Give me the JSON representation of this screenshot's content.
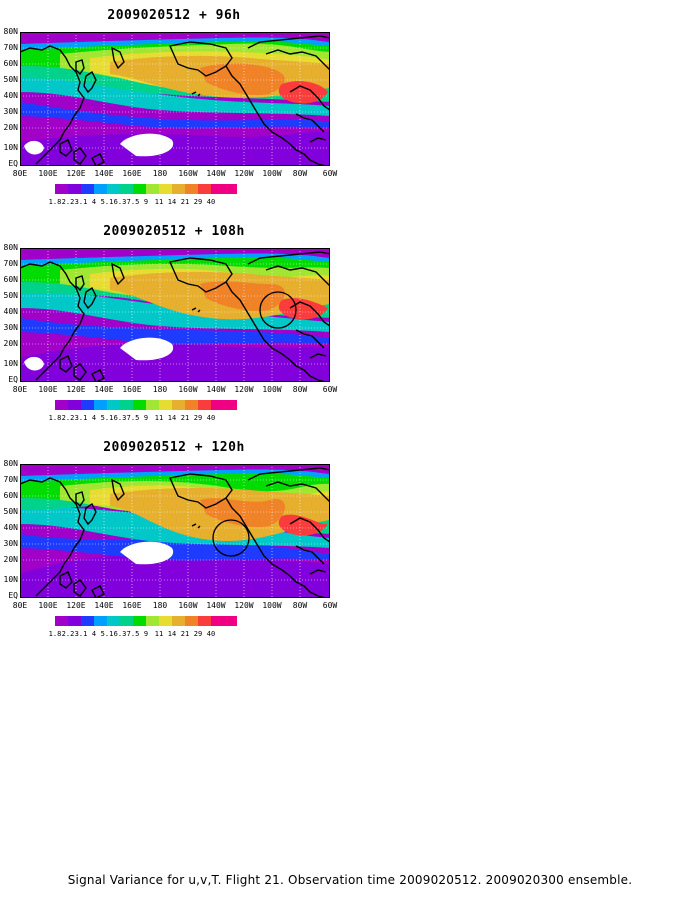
{
  "colors": {
    "levels": [
      "#a000c8",
      "#8200dc",
      "#1e3cff",
      "#00a0ff",
      "#00c8c8",
      "#00d28c",
      "#00dc00",
      "#a0e632",
      "#e6dc32",
      "#e6af2d",
      "#f08228",
      "#fa3c3c",
      "#f00082"
    ],
    "land_outline": "#000000",
    "undefined": "#ffffff"
  },
  "legend_labels": [
    "1.8",
    "2.2",
    "3.1",
    "4",
    "5.1",
    "6.3",
    "7.5",
    "9",
    "11",
    "14",
    "21",
    "29",
    "40"
  ],
  "lat_labels": [
    "80N",
    "70N",
    "60N",
    "50N",
    "40N",
    "30N",
    "20N",
    "10N",
    "EQ"
  ],
  "lon_labels": [
    "80E",
    "100E",
    "120E",
    "140E",
    "160E",
    "180",
    "160W",
    "140W",
    "120W",
    "100W",
    "80W",
    "60W"
  ],
  "panels": [
    {
      "title": "2009020512 + 96h"
    },
    {
      "title": "2009020512 + 108h"
    },
    {
      "title": "2009020512 + 120h"
    }
  ],
  "footer": "Signal Variance for u,v,T. Flight 21. Observation time 2009020512. 2009020300 ensemble."
}
